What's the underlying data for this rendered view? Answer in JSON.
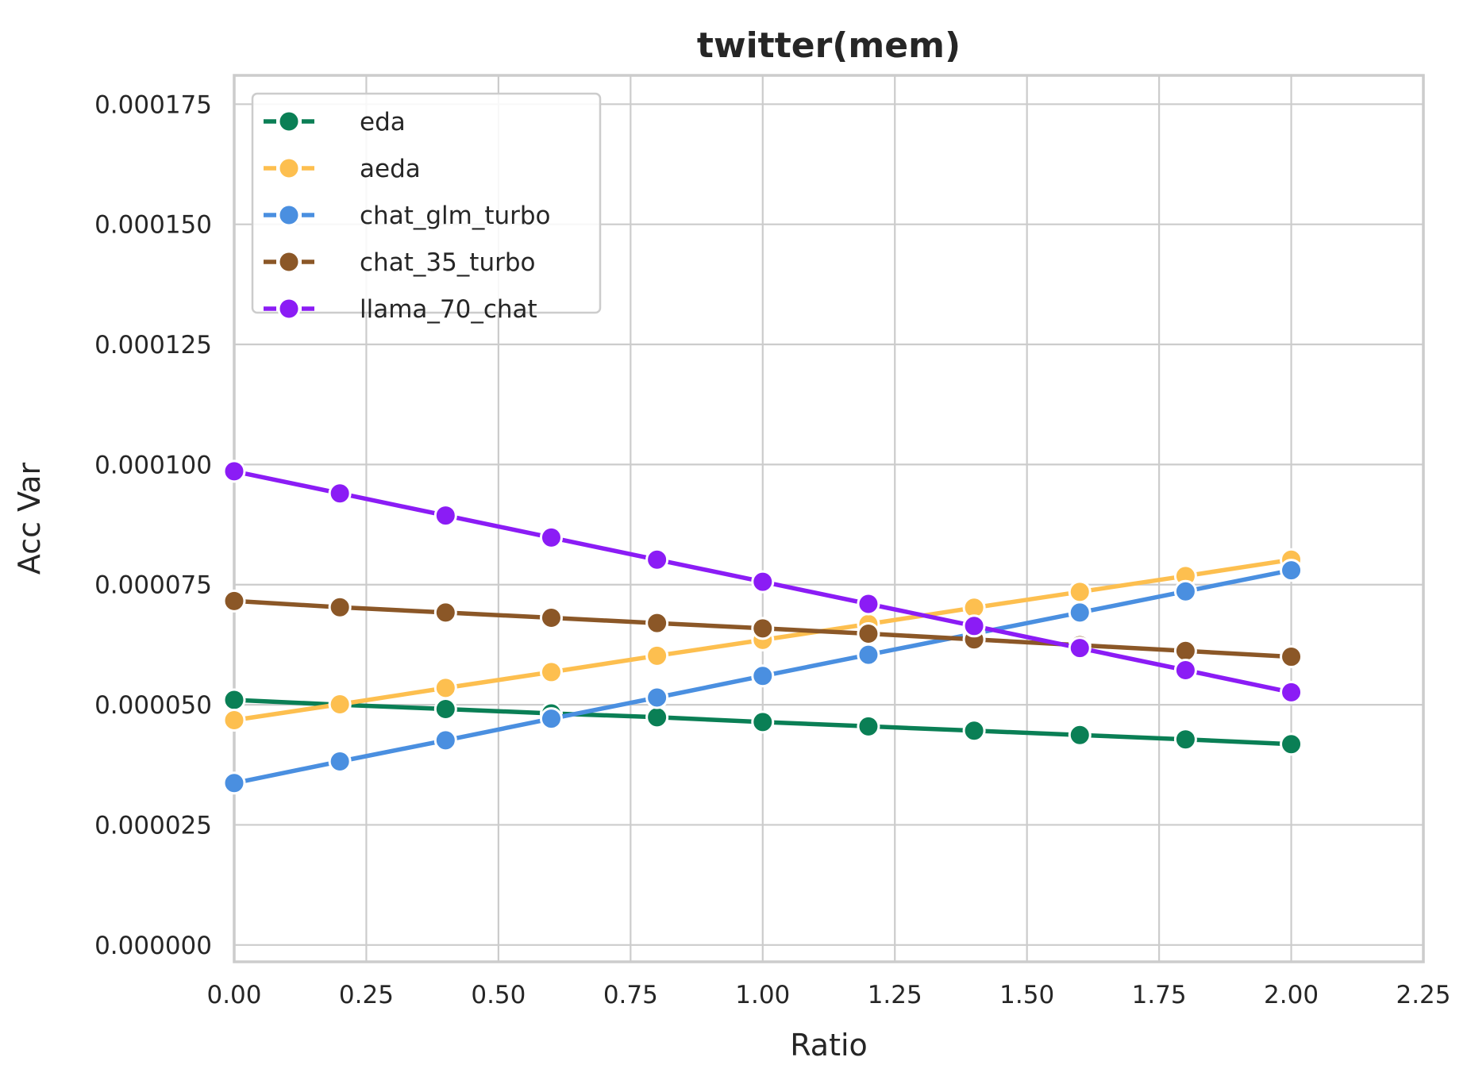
{
  "chart_data": {
    "type": "line",
    "title": "twitter(mem)",
    "xlabel": "Ratio",
    "ylabel": "Acc Var",
    "xlim": [
      0,
      2.25
    ],
    "ylim": [
      -3.5e-06,
      0.000181
    ],
    "grid": true,
    "legend_position": "top-left",
    "x_ticks": [
      0,
      0.25,
      0.5,
      0.75,
      1.0,
      1.25,
      1.5,
      1.75,
      2.0,
      2.25
    ],
    "x_tick_labels": [
      "0.00",
      "0.25",
      "0.50",
      "0.75",
      "1.00",
      "1.25",
      "1.50",
      "1.75",
      "2.00",
      "2.25"
    ],
    "y_ticks": [
      0,
      2.5e-05,
      5e-05,
      7.5e-05,
      0.0001,
      0.000125,
      0.00015,
      0.000175
    ],
    "y_tick_labels": [
      "0.000000",
      "0.000025",
      "0.000050",
      "0.000075",
      "0.000100",
      "0.000125",
      "0.000150",
      "0.000175"
    ],
    "x": [
      0,
      0.2,
      0.4,
      0.6,
      0.8,
      1.0,
      1.2,
      1.4,
      1.6,
      1.8,
      2.0
    ],
    "series": [
      {
        "name": "eda",
        "color": "#0a7f55",
        "values": [
          5.1e-05,
          5e-05,
          4.91e-05,
          4.82e-05,
          4.74e-05,
          4.64e-05,
          4.55e-05,
          4.46e-05,
          4.37e-05,
          4.28e-05,
          4.18e-05
        ]
      },
      {
        "name": "aeda",
        "color": "#fdbf4f",
        "values": [
          4.68e-05,
          5.01e-05,
          5.35e-05,
          5.68e-05,
          6.02e-05,
          6.35e-05,
          6.68e-05,
          7.02e-05,
          7.35e-05,
          7.68e-05,
          8.02e-05
        ]
      },
      {
        "name": "chat_glm_turbo",
        "color": "#4a8fe0",
        "values": [
          3.37e-05,
          3.82e-05,
          4.26e-05,
          4.71e-05,
          5.15e-05,
          5.6e-05,
          6.04e-05,
          6.48e-05,
          6.92e-05,
          7.36e-05,
          7.8e-05
        ]
      },
      {
        "name": "chat_35_turbo",
        "color": "#8b5727",
        "values": [
          7.16e-05,
          7.03e-05,
          6.92e-05,
          6.81e-05,
          6.7e-05,
          6.59e-05,
          6.48e-05,
          6.36e-05,
          6.24e-05,
          6.12e-05,
          6e-05
        ]
      },
      {
        "name": "llama_70_chat",
        "color": "#8b1cf5",
        "values": [
          9.86e-05,
          9.4e-05,
          8.94e-05,
          8.48e-05,
          8.02e-05,
          7.56e-05,
          7.1e-05,
          6.64e-05,
          6.18e-05,
          5.72e-05,
          5.26e-05
        ]
      }
    ]
  }
}
